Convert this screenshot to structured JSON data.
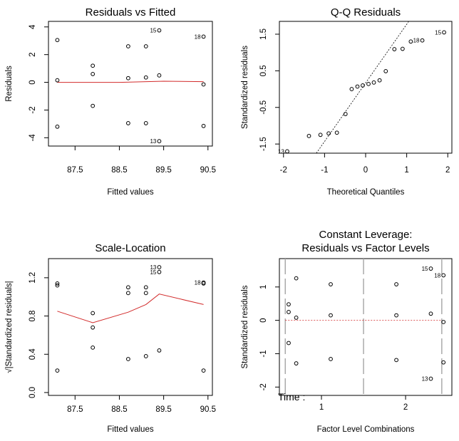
{
  "chart_data": [
    {
      "type": "scatter",
      "title": "Residuals vs Fitted",
      "xlabel": "Fitted values",
      "ylabel": "Residuals",
      "xlim": [
        86.9,
        90.6
      ],
      "ylim": [
        -4.6,
        4.4
      ],
      "xticks": [
        87.5,
        88.5,
        89.5,
        90.5
      ],
      "xtick_labels": [
        "87.5",
        "88.5",
        "89.5",
        "90.5"
      ],
      "yticks": [
        -4,
        -2,
        0,
        2,
        4
      ],
      "ytick_labels": [
        "-4",
        "-2",
        "0",
        "2",
        "4"
      ],
      "x": [
        87.1,
        87.1,
        87.1,
        87.9,
        87.9,
        87.9,
        88.7,
        88.7,
        88.7,
        89.1,
        89.1,
        89.1,
        89.4,
        89.4,
        89.4,
        90.4,
        90.4,
        90.4
      ],
      "y": [
        3.05,
        0.15,
        -3.2,
        1.2,
        0.6,
        -1.7,
        2.6,
        0.3,
        -2.95,
        2.6,
        0.35,
        -2.95,
        3.75,
        0.5,
        -4.25,
        3.3,
        -0.15,
        -3.15
      ],
      "smooth": {
        "x": [
          87.1,
          88.5,
          89.5,
          90.4
        ],
        "y": [
          0.0,
          0.0,
          0.08,
          0.05
        ]
      },
      "labels": [
        {
          "text": "15",
          "i": 12
        },
        {
          "text": "18",
          "i": 15
        },
        {
          "text": "13",
          "i": 14
        }
      ]
    },
    {
      "type": "scatter",
      "title": "Q-Q Residuals",
      "xlabel": "Theoretical Quantiles",
      "ylabel": "Standardized residuals",
      "xlim": [
        -2.1,
        2.1
      ],
      "ylim": [
        -1.75,
        1.85
      ],
      "xticks": [
        -2,
        -1,
        0,
        1,
        2
      ],
      "xtick_labels": [
        "-2",
        "-1",
        "0",
        "1",
        "2"
      ],
      "yticks": [
        -1.5,
        -0.5,
        0.5,
        1.5
      ],
      "ytick_labels": [
        "-1.5",
        "-0.5",
        "0.5",
        "1.5"
      ],
      "x": [
        -1.91,
        -1.38,
        -1.1,
        -0.9,
        -0.7,
        -0.49,
        -0.34,
        -0.2,
        -0.07,
        0.07,
        0.2,
        0.34,
        0.49,
        0.7,
        0.9,
        1.1,
        1.38,
        1.91
      ],
      "y": [
        -1.7,
        -1.28,
        -1.25,
        -1.21,
        -1.19,
        -0.68,
        0.0,
        0.07,
        0.1,
        0.14,
        0.18,
        0.24,
        0.49,
        1.09,
        1.1,
        1.3,
        1.33,
        1.55
      ],
      "ref_line": {
        "x": [
          -1.2,
          1.05
        ],
        "y": [
          -1.75,
          1.85
        ]
      },
      "labels": [
        {
          "text": "15",
          "i": 17
        },
        {
          "text": "18",
          "i": 16
        },
        {
          "text": "13",
          "i": 0
        }
      ]
    },
    {
      "type": "scatter",
      "title": "Scale-Location",
      "xlabel": "Fitted values",
      "ylabel": "√|Standardized residuals|",
      "xlim": [
        86.9,
        90.6
      ],
      "ylim": [
        -0.03,
        1.4
      ],
      "xticks": [
        87.5,
        88.5,
        89.5,
        90.5
      ],
      "xtick_labels": [
        "87.5",
        "88.5",
        "89.5",
        "90.5"
      ],
      "yticks": [
        0.0,
        0.4,
        0.8,
        1.2
      ],
      "ytick_labels": [
        "0.0",
        "0.4",
        "0.8",
        "1.2"
      ],
      "x": [
        87.1,
        87.1,
        87.1,
        87.9,
        87.9,
        87.9,
        88.7,
        88.7,
        88.7,
        89.1,
        89.1,
        89.1,
        89.4,
        89.4,
        89.4,
        90.4,
        90.4,
        90.4
      ],
      "y": [
        1.14,
        1.12,
        0.23,
        0.83,
        0.68,
        0.47,
        1.1,
        1.04,
        0.35,
        1.1,
        1.04,
        0.38,
        1.31,
        1.26,
        0.44,
        1.15,
        1.14,
        0.23
      ],
      "smooth": {
        "x": [
          87.1,
          87.9,
          88.7,
          89.1,
          89.4,
          90.4
        ],
        "y": [
          0.85,
          0.73,
          0.84,
          0.92,
          1.03,
          0.92
        ]
      },
      "labels": [
        {
          "text": "13",
          "i": 12
        },
        {
          "text": "15",
          "i": 13
        },
        {
          "text": "18",
          "i": 15
        }
      ]
    },
    {
      "type": "scatter",
      "title": "Constant Leverage:",
      "title2": "Residuals vs Factor Levels",
      "xlabel": "Factor Level Combinations",
      "ylabel": "Standardized residuals",
      "factor_label": "Time :",
      "xlim": [
        0.5,
        2.55
      ],
      "ylim": [
        -2.25,
        1.85
      ],
      "xticks": [
        1,
        2
      ],
      "xtick_labels": [
        "1",
        "2"
      ],
      "yticks": [
        -2,
        -1,
        0,
        1
      ],
      "ytick_labels": [
        "-2",
        "-1",
        "0",
        "1"
      ],
      "separators": [
        0.57,
        1.5,
        2.43
      ],
      "x": [
        0.61,
        0.61,
        0.61,
        0.7,
        0.7,
        0.7,
        1.11,
        1.11,
        1.11,
        1.89,
        1.89,
        1.89,
        2.3,
        2.3,
        2.3,
        2.45,
        2.45,
        2.45
      ],
      "y": [
        0.48,
        0.25,
        -0.68,
        1.26,
        0.08,
        -1.29,
        1.08,
        0.15,
        -1.16,
        1.08,
        0.15,
        -1.19,
        1.55,
        0.2,
        -1.75,
        1.35,
        -0.05,
        -1.26
      ],
      "labels": [
        {
          "text": "15",
          "i": 12
        },
        {
          "text": "18",
          "i": 15
        },
        {
          "text": "13",
          "i": 14
        }
      ]
    }
  ]
}
